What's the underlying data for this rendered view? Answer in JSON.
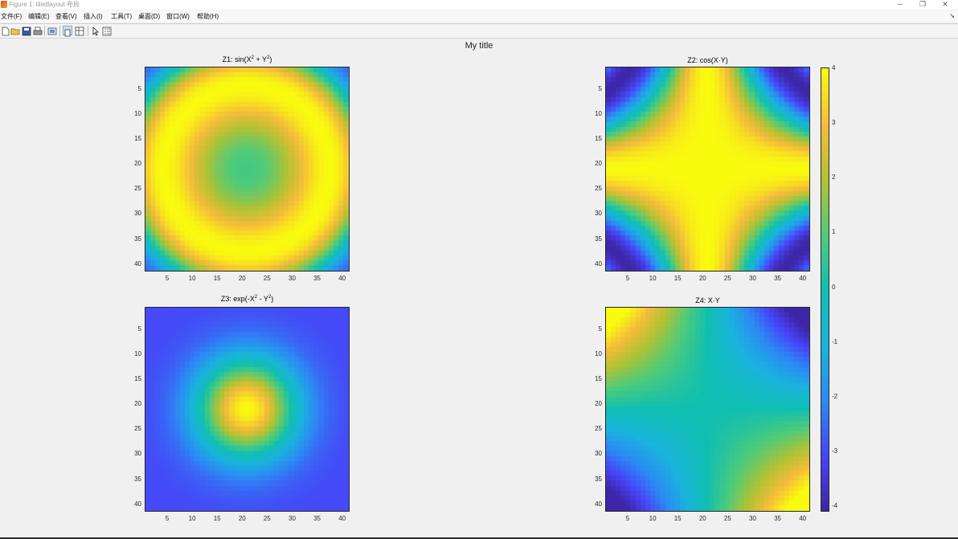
{
  "window": {
    "title": "Figure 1: tiledlayout 布局",
    "minimize_glyph": "─",
    "restore_glyph": "❐",
    "close_glyph": "✕"
  },
  "menu": [
    "文件(F)",
    "编辑(E)",
    "查看(V)",
    "插入(I)",
    "工具(T)",
    "桌面(D)",
    "窗口(W)",
    "帮助(H)"
  ],
  "toolbar": {
    "icons": [
      "new-figure-icon",
      "open-file-icon",
      "save-icon",
      "print-icon",
      "link-plot-icon",
      "dock-figure-icon",
      "property-editor-icon",
      "pointer-icon",
      "plot-browser-icon"
    ],
    "colors": {
      "border": "#262626",
      "highlight": "#cde3f7"
    }
  },
  "figure": {
    "title": "My title",
    "colorbar": {
      "ticks": [
        "4",
        "3",
        "2",
        "1",
        "0",
        "-1",
        "-2",
        "-3",
        "-4"
      ],
      "colormap": "parula",
      "range": [
        -4,
        4
      ]
    }
  },
  "chart_data": [
    {
      "type": "heatmap",
      "title_base": "Z1: sin(X",
      "title_sup1": "2",
      "title_mid": " + Y",
      "title_sup2": "2",
      "title_end": ")",
      "function": "sin(X^2 + Y^2)",
      "grid": [
        41,
        41
      ],
      "x_ticks": [
        "5",
        "10",
        "15",
        "20",
        "25",
        "30",
        "35",
        "40"
      ],
      "y_ticks": [
        "5",
        "10",
        "15",
        "20",
        "25",
        "30",
        "35",
        "40"
      ],
      "clim": [
        -4,
        4
      ]
    },
    {
      "type": "heatmap",
      "title": "Z2: cos(X·Y)",
      "function": "cos(X*Y)",
      "grid": [
        41,
        41
      ],
      "x_ticks": [
        "5",
        "10",
        "15",
        "20",
        "25",
        "30",
        "35",
        "40"
      ],
      "y_ticks": [
        "5",
        "10",
        "15",
        "20",
        "25",
        "30",
        "35",
        "40"
      ],
      "clim": [
        -4,
        4
      ]
    },
    {
      "type": "heatmap",
      "title_base": "Z3: exp(-X",
      "title_sup1": "2",
      "title_mid": " - Y",
      "title_sup2": "2",
      "title_end": ")",
      "function": "exp(-X^2 - Y^2)",
      "grid": [
        41,
        41
      ],
      "x_ticks": [
        "5",
        "10",
        "15",
        "20",
        "25",
        "30",
        "35",
        "40"
      ],
      "y_ticks": [
        "5",
        "10",
        "15",
        "20",
        "25",
        "30",
        "35",
        "40"
      ],
      "clim": [
        -4,
        4
      ]
    },
    {
      "type": "heatmap",
      "title": "Z4: X·Y",
      "function": "X*Y",
      "grid": [
        41,
        41
      ],
      "x_ticks": [
        "5",
        "10",
        "15",
        "20",
        "25",
        "30",
        "35",
        "40"
      ],
      "y_ticks": [
        "5",
        "10",
        "15",
        "20",
        "25",
        "30",
        "35",
        "40"
      ],
      "clim": [
        -4,
        4
      ]
    }
  ]
}
